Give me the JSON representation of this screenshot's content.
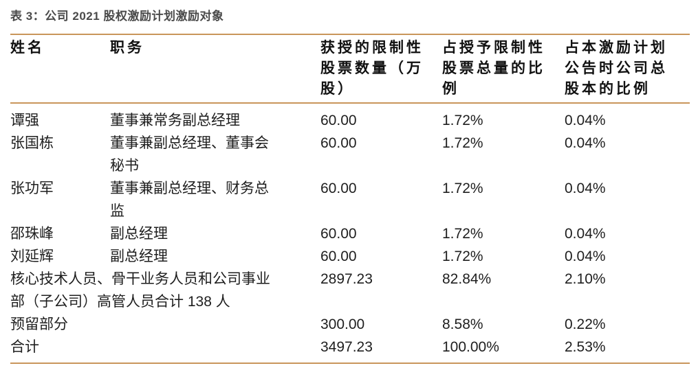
{
  "colors": {
    "accent": "#C9955A",
    "title_text": "#4A4A4A",
    "body_text": "#1E1E1E"
  },
  "title": "表 3：公司 2021 股权激励计划激励对象",
  "table": {
    "headers": {
      "name": "姓名",
      "position": "职务",
      "granted_shares": "获授的限制性\n股票数量（万\n股）",
      "pct_of_granted_total": "占授予限制性\n股票总量的比\n例",
      "pct_of_share_capital": "占本激励计划\n公告时公司总\n股本的比例"
    },
    "rows": [
      {
        "name": "谭强",
        "position": "董事兼常务副总经理",
        "qty": "60.00",
        "pct_grant": "1.72%",
        "pct_capital": "0.04%"
      },
      {
        "name": "张国栋",
        "position": "董事兼副总经理、董事会\n秘书",
        "qty": "60.00",
        "pct_grant": "1.72%",
        "pct_capital": "0.04%"
      },
      {
        "name": "张功军",
        "position": "董事兼副总经理、财务总\n监",
        "qty": "60.00",
        "pct_grant": "1.72%",
        "pct_capital": "0.04%"
      },
      {
        "name": "邵珠峰",
        "position": "副总经理",
        "qty": "60.00",
        "pct_grant": "1.72%",
        "pct_capital": "0.04%"
      },
      {
        "name": "刘延辉",
        "position": "副总经理",
        "qty": "60.00",
        "pct_grant": "1.72%",
        "pct_capital": "0.04%"
      },
      {
        "name": "核心技术人员、骨干业务人员和公司事业\n部（子公司）高管人员合计 138 人",
        "position": "",
        "qty": "2897.23",
        "pct_grant": "82.84%",
        "pct_capital": "2.10%"
      },
      {
        "name": "预留部分",
        "position": "",
        "qty": "300.00",
        "pct_grant": "8.58%",
        "pct_capital": "0.22%"
      },
      {
        "name": "合计",
        "position": "",
        "qty": "3497.23",
        "pct_grant": "100.00%",
        "pct_capital": "2.53%"
      }
    ]
  }
}
